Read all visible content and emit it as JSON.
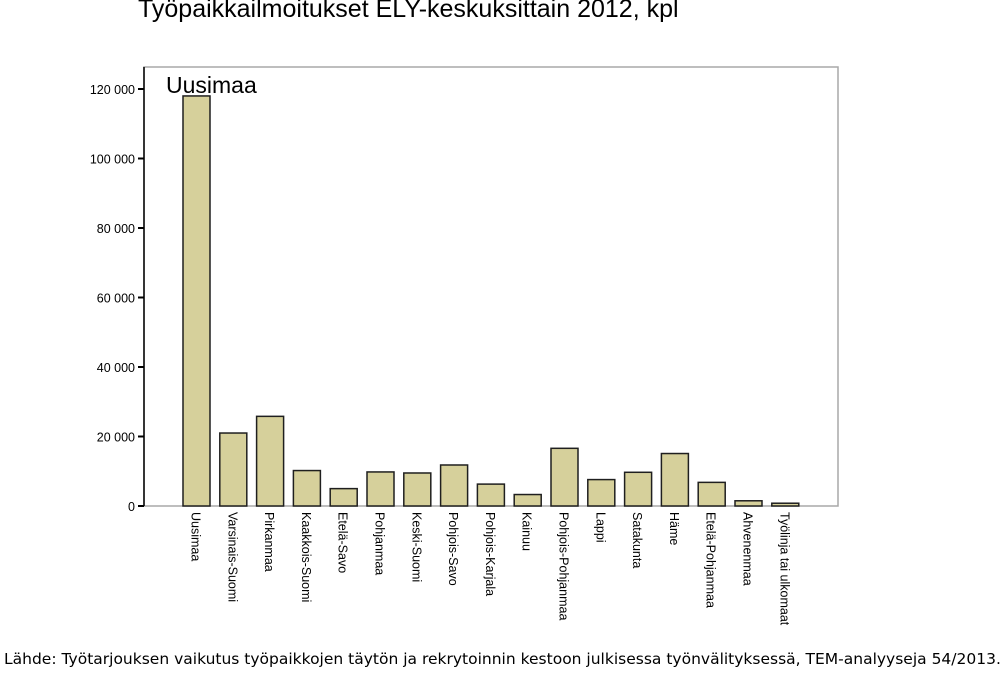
{
  "page": {
    "title": "Työpaikkailmoitukset ELY-keskuksittain 2012, kpl",
    "source": "Lähde: Työtarjouksen vaikutus työpaikkojen täytön ja rekrytoinnin kestoon julkisessa työnvälityksessä, TEM-analyyseja 54/2013."
  },
  "chart_data": {
    "type": "bar",
    "title": "Työpaikkailmoitukset ELY-keskuksittain 2012, kpl",
    "xlabel": "",
    "ylabel": "",
    "annotation": "Uusimaa",
    "ylim": [
      0,
      125000
    ],
    "yticks": [
      0,
      20000,
      40000,
      60000,
      80000,
      100000,
      120000
    ],
    "ytick_labels": [
      "0",
      "20 000",
      "40 000",
      "60 000",
      "80 000",
      "100 000",
      "120 000"
    ],
    "categories": [
      "Uusimaa",
      "Varsinais-Suomi",
      "Pirkanmaa",
      "Kaakkois-Suomi",
      "Etelä-Savo",
      "Pohjanmaa",
      "Keski-Suomi",
      "Pohjois-Savo",
      "Pohjois-Karjala",
      "Kainuu",
      "Pohjois-Pohjanmaa",
      "Lappi",
      "Satakunta",
      "Häme",
      "Etelä-Pohjanmaa",
      "Ahvenenmaa",
      "Työlinja tai ulkomaat"
    ],
    "values": [
      118000,
      21000,
      25800,
      10200,
      5000,
      9800,
      9500,
      11800,
      6300,
      3300,
      16600,
      7600,
      9700,
      15100,
      6800,
      1500,
      800
    ],
    "grid": false,
    "legend": "none",
    "colors": {
      "bar_fill": "#d6d09b",
      "bar_stroke": "#1f1f1f",
      "axis": "#000000",
      "frame": "#a9a9a9"
    }
  }
}
